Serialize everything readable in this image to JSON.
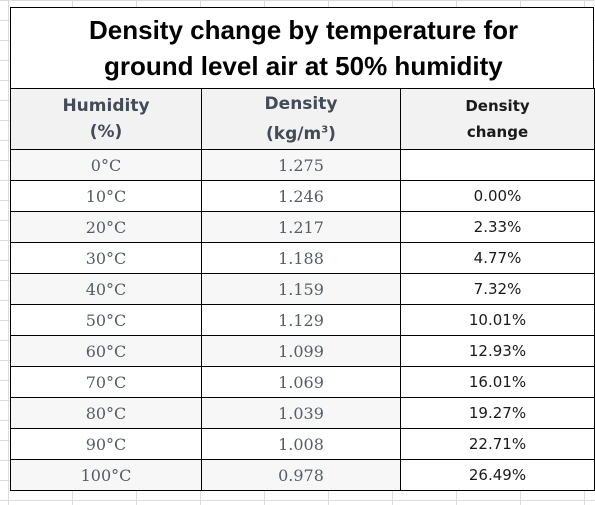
{
  "title": {
    "line1": "Density change by temperature for",
    "line2": "ground level air at 50% humidity"
  },
  "headers": {
    "col1_line1": "Humidity",
    "col1_line2": "(%)",
    "col2_line1": "Density",
    "col2_line2_base": "(kg/m",
    "col2_line2_sup": "3",
    "col2_line2_end": ")",
    "col3_line1": "Density",
    "col3_line2": "change"
  },
  "rows": [
    {
      "temp": "0°C",
      "density": "1.275",
      "change": ""
    },
    {
      "temp": "10°C",
      "density": "1.246",
      "change": "0.00%"
    },
    {
      "temp": "20°C",
      "density": "1.217",
      "change": "2.33%"
    },
    {
      "temp": "30°C",
      "density": "1.188",
      "change": "4.77%"
    },
    {
      "temp": "40°C",
      "density": "1.159",
      "change": "7.32%"
    },
    {
      "temp": "50°C",
      "density": "1.129",
      "change": "10.01%"
    },
    {
      "temp": "60°C",
      "density": "1.099",
      "change": "12.93%"
    },
    {
      "temp": "70°C",
      "density": "1.069",
      "change": "16.01%"
    },
    {
      "temp": "80°C",
      "density": "1.039",
      "change": "19.27%"
    },
    {
      "temp": "90°C",
      "density": "1.008",
      "change": "22.71%"
    },
    {
      "temp": "100°C",
      "density": "0.978",
      "change": "26.49%"
    }
  ]
}
